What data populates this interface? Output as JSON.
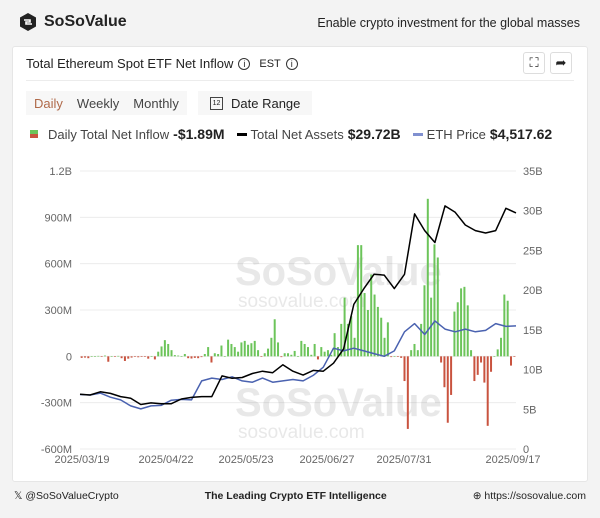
{
  "brand": {
    "name": "SoSoValue",
    "tagline": "Enable crypto investment for the global masses"
  },
  "card": {
    "title": "Total Ethereum Spot ETF Net Inflow",
    "timezone": "EST",
    "tabs": [
      "Daily",
      "Weekly",
      "Monthly"
    ],
    "active_tab": "Daily",
    "date_range_label": "Date Range",
    "calendar_day": "12"
  },
  "legend": [
    {
      "label": "Daily Total Net Inflow",
      "value": "-$1.89M",
      "color": "#5cb85c"
    },
    {
      "label": "Total Net Assets",
      "value": "$29.72B",
      "color": "#000000"
    },
    {
      "label": "ETH Price",
      "value": "$4,517.62",
      "color": "#4a62b0"
    }
  ],
  "watermark": {
    "name": "SoSoValue",
    "url": "sosovalue.com"
  },
  "footer": {
    "handle": "@SoSoValueCrypto",
    "slogan": "The Leading Crypto ETF Intelligence",
    "url": "https://sosovalue.com"
  },
  "colors": {
    "positive": "#6cc45a",
    "negative": "#c9533f",
    "assets": "#000000",
    "price": "#4a62b0"
  },
  "chart_data": {
    "type": "bar+line",
    "x_ticks": [
      "2025/03/19",
      "2025/04/22",
      "2025/05/23",
      "2025/06/27",
      "2025/07/31",
      "2025/09/17"
    ],
    "x_range": [
      "2025/03/19",
      "2025/09/17"
    ],
    "y_left": {
      "ticks": [
        "1.2B",
        "900M",
        "600M",
        "300M",
        "0",
        "-300M",
        "-600M"
      ],
      "range_millions": [
        -600,
        1200
      ]
    },
    "y_right": {
      "ticks": [
        "35B",
        "30B",
        "25B",
        "20B",
        "15B",
        "10B",
        "5B",
        "0"
      ],
      "range_billions": [
        0,
        35
      ]
    },
    "grid": true,
    "daily_net_inflow_millions": [
      -10,
      -8,
      -12,
      0,
      2,
      3,
      -2,
      5,
      -35,
      0,
      -2,
      3,
      -12,
      -30,
      -15,
      -8,
      -3,
      -6,
      -4,
      -3,
      -15,
      0,
      -20,
      30,
      64,
      105,
      80,
      40,
      8,
      5,
      2,
      15,
      -12,
      -14,
      -10,
      -12,
      -5,
      15,
      60,
      -40,
      20,
      15,
      70,
      0,
      108,
      80,
      60,
      30,
      90,
      100,
      75,
      85,
      100,
      40,
      -2,
      20,
      50,
      120,
      240,
      90,
      -5,
      20,
      20,
      10,
      35,
      0,
      100,
      80,
      60,
      10,
      80,
      -20,
      60,
      30,
      40,
      10,
      150,
      60,
      210,
      380,
      210,
      260,
      120,
      720,
      720,
      410,
      300,
      530,
      400,
      320,
      250,
      120,
      220,
      -5,
      0,
      -4,
      -10,
      -160,
      -470,
      40,
      80,
      40,
      210,
      460,
      1020,
      380,
      725,
      640,
      -40,
      -200,
      -430,
      -250,
      290,
      350,
      440,
      450,
      330,
      40,
      -160,
      -120,
      -40,
      -170,
      -450,
      -100,
      0,
      45,
      120,
      400,
      360,
      -60,
      -1.89
    ],
    "total_net_assets_billions": [
      6.9,
      6.8,
      7.2,
      7.0,
      6.6,
      6.4,
      5.6,
      5.8,
      5.7,
      5.7,
      6.3,
      6.5,
      6.6,
      6.6,
      9.2,
      8.9,
      9.0,
      9.5,
      9.8,
      9.6,
      10.6,
      9.8,
      9.3,
      9.9,
      9.8,
      10.8,
      12.6,
      18.2,
      20.2,
      22.0,
      21.9,
      20.2,
      22.0,
      29.6,
      27.5,
      26.0,
      30.6,
      29.8,
      28.2,
      27.5,
      27.2,
      27.5,
      30.3,
      29.72
    ],
    "eth_price_usd": [
      2000,
      1980,
      2050,
      1900,
      1800,
      1580,
      1470,
      1580,
      1600,
      1790,
      1820,
      1800,
      2500,
      2600,
      2550,
      2650,
      2500,
      2450,
      2600,
      2450,
      2500,
      2550,
      2500,
      2700,
      3000,
      3700,
      3600,
      3700,
      3600,
      3500,
      3400,
      3600,
      4300,
      4600,
      4200,
      4700,
      4400,
      4300,
      4400,
      4300,
      4350,
      4600,
      4500,
      4517.62
    ]
  }
}
